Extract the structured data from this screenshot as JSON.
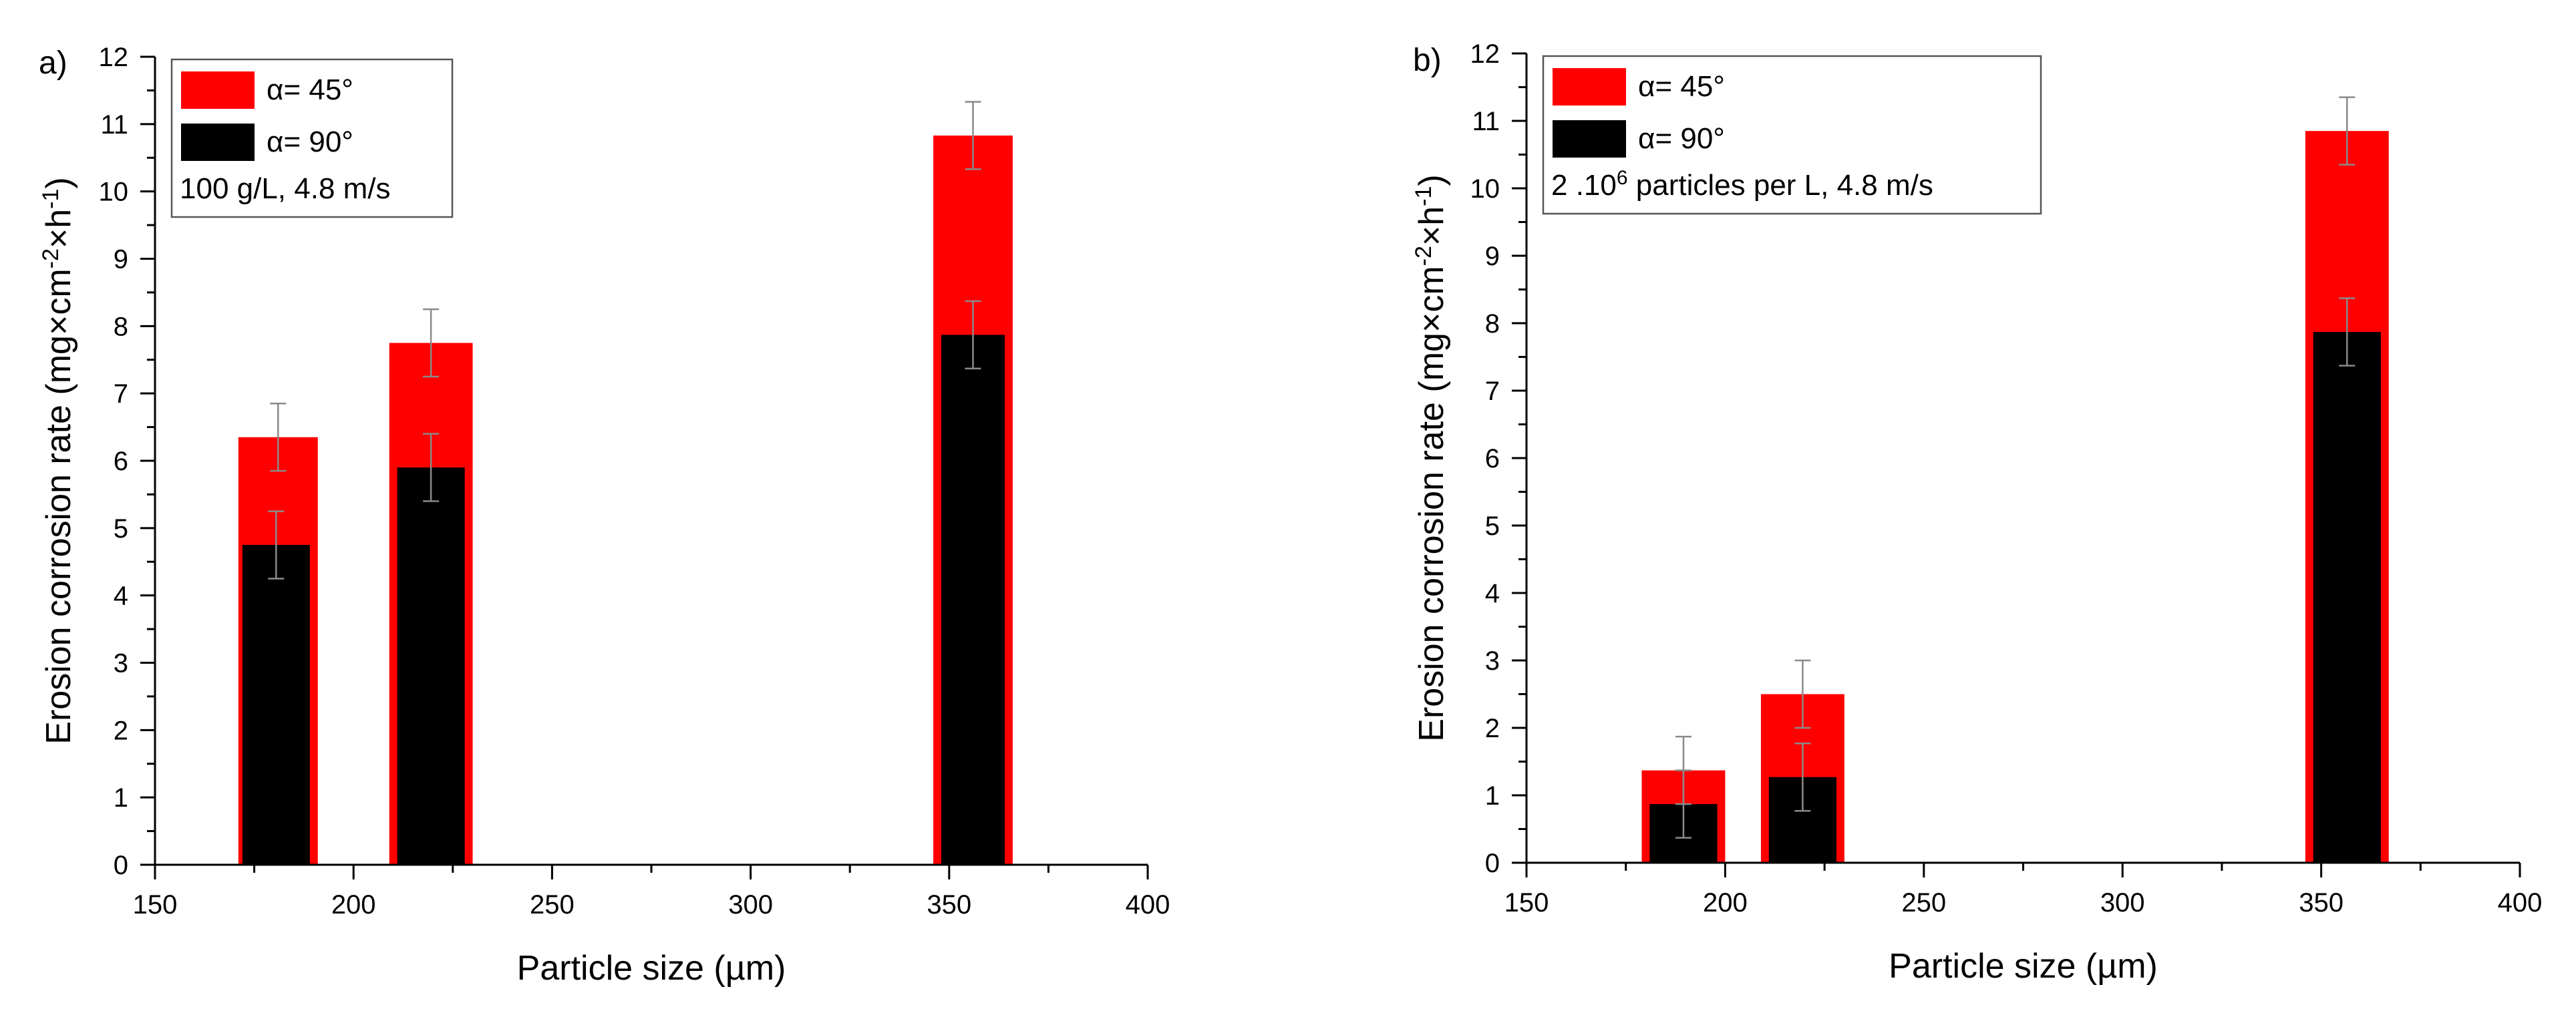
{
  "chart_data": [
    {
      "type": "bar",
      "panel_label": "a)",
      "xlabel": "Particle size (µm)",
      "ylabel": "Erosion corrosion rate (mg×cm",
      "ylabel_sup1": "-2",
      "ylabel_mid": "×h",
      "ylabel_sup2": "-1",
      "ylabel_end": ")",
      "xlim": [
        150,
        400
      ],
      "ylim": [
        0,
        12
      ],
      "xticks": [
        150,
        200,
        250,
        300,
        350,
        400
      ],
      "xtick_labels": [
        "150",
        "200",
        "250",
        "300",
        "350",
        "400"
      ],
      "yticks": [
        0,
        1,
        2,
        3,
        4,
        5,
        6,
        7,
        8,
        9,
        10,
        11,
        12
      ],
      "ytick_labels": [
        "0",
        "1",
        "2",
        "3",
        "4",
        "5",
        "6",
        "7",
        "8",
        "9",
        "10",
        "11",
        "12"
      ],
      "legend_position": "top-left",
      "series": [
        {
          "name": "α= 45°",
          "color": "#ff0000",
          "bars": [
            {
              "x_start": 171,
              "x_end": 191,
              "value": 6.35,
              "error": 0.5
            },
            {
              "x_start": 209,
              "x_end": 230,
              "value": 7.75,
              "error": 0.5
            },
            {
              "x_start": 346,
              "x_end": 366,
              "value": 10.83,
              "error": 0.5
            }
          ]
        },
        {
          "name": "α= 90°",
          "color": "#000000",
          "bars": [
            {
              "x_start": 172,
              "x_end": 189,
              "value": 4.75,
              "error": 0.5
            },
            {
              "x_start": 211,
              "x_end": 228,
              "value": 5.9,
              "error": 0.5
            },
            {
              "x_start": 348,
              "x_end": 364,
              "value": 7.87,
              "error": 0.5
            }
          ]
        }
      ],
      "annotation": "100 g/L, 4.8 m/s",
      "annotation_sup": "",
      "annotation_tail": ""
    },
    {
      "type": "bar",
      "panel_label": "b)",
      "xlabel": "Particle size (µm)",
      "ylabel": "Erosion corrosion rate (mg×cm",
      "ylabel_sup1": "-2",
      "ylabel_mid": "×h",
      "ylabel_sup2": "-1",
      "ylabel_end": ")",
      "xlim": [
        150,
        400
      ],
      "ylim": [
        0,
        12
      ],
      "xticks": [
        150,
        200,
        250,
        300,
        350,
        400
      ],
      "xtick_labels": [
        "150",
        "200",
        "250",
        "300",
        "350",
        "400"
      ],
      "yticks": [
        0,
        1,
        2,
        3,
        4,
        5,
        6,
        7,
        8,
        9,
        10,
        11,
        12
      ],
      "ytick_labels": [
        "0",
        "1",
        "2",
        "3",
        "4",
        "5",
        "6",
        "7",
        "8",
        "9",
        "10",
        "11",
        "12"
      ],
      "legend_position": "top-left",
      "series": [
        {
          "name": "α= 45°",
          "color": "#ff0000",
          "bars": [
            {
              "x_start": 179,
              "x_end": 200,
              "value": 1.37,
              "error": 0.5
            },
            {
              "x_start": 209,
              "x_end": 230,
              "value": 2.5,
              "error": 0.5
            },
            {
              "x_start": 346,
              "x_end": 367,
              "value": 10.85,
              "error": 0.5
            }
          ]
        },
        {
          "name": "α= 90°",
          "color": "#000000",
          "bars": [
            {
              "x_start": 181,
              "x_end": 198,
              "value": 0.87,
              "error": 0.5
            },
            {
              "x_start": 211,
              "x_end": 228,
              "value": 1.27,
              "error": 0.5
            },
            {
              "x_start": 348,
              "x_end": 365,
              "value": 7.87,
              "error": 0.5
            }
          ]
        }
      ],
      "annotation": "2 .10",
      "annotation_sup": "6",
      "annotation_tail": " particles per L, 4.8 m/s"
    }
  ]
}
